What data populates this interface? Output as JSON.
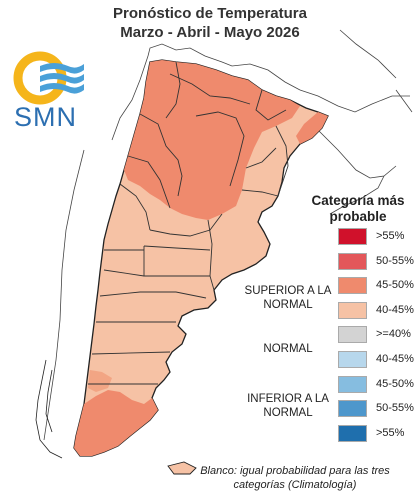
{
  "title": {
    "line1": "Pronóstico de Temperatura",
    "line2": "Marzo - Abril - Mayo 2026"
  },
  "logo": {
    "text": "SMN",
    "colors": {
      "sun": "#f5b51b",
      "waves": "#4aa0d8",
      "text": "#2c6fb1"
    }
  },
  "legend": {
    "title_line1": "Categoría más",
    "title_line2": "probable",
    "items": [
      {
        "label": ">55%",
        "color": "#d0112b"
      },
      {
        "label": "50-55%",
        "color": "#e3575a"
      },
      {
        "label": "45-50%",
        "color": "#ef8a6d"
      },
      {
        "label": "40-45%",
        "color": "#f6c2a5"
      },
      {
        "label": ">=40%",
        "color": "#d3d3d3"
      },
      {
        "label": "40-45%",
        "color": "#b7d7ec"
      },
      {
        "label": "45-50%",
        "color": "#86bde0"
      },
      {
        "label": "50-55%",
        "color": "#4e97cc"
      },
      {
        "label": ">55%",
        "color": "#1f6fad"
      }
    ],
    "groups": {
      "superior": "SUPERIOR A LA NORMAL",
      "normal": "NORMAL",
      "inferior": "INFERIOR A LA NORMAL"
    }
  },
  "footnote": {
    "line1": "Blanco: igual probabilidad para las tres",
    "line2": "categorías (Climatología)"
  },
  "map": {
    "category_colors": {
      "45-50%": "#ef8a6d",
      "40-45%": "#f6c2a5"
    }
  }
}
